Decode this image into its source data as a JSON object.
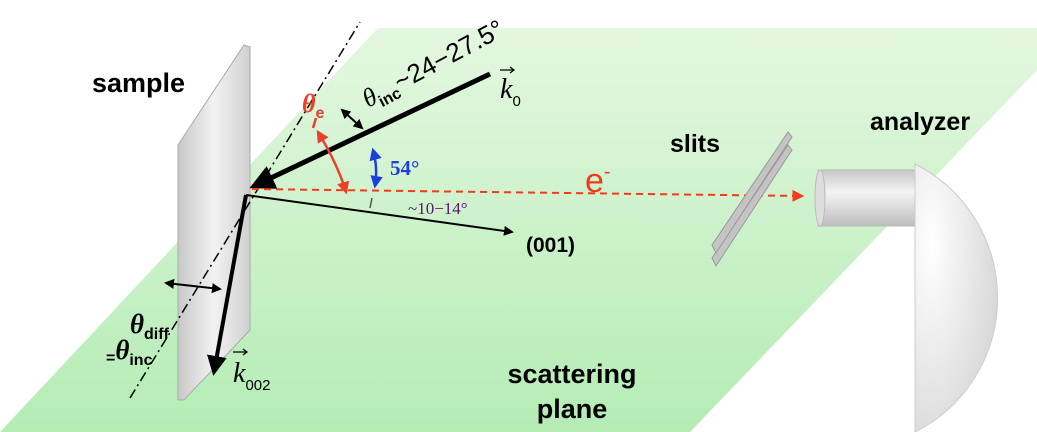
{
  "labels": {
    "sample": "sample",
    "slits": "slits",
    "analyzer": "analyzer",
    "scattering_plane": [
      "scattering",
      "plane"
    ],
    "reflection": "(001)",
    "beam": {
      "text": "e",
      "sup": "-"
    },
    "angle_54": "54°",
    "angle_out": "~10−14°",
    "theta_e": {
      "symbol": "θ",
      "sub": "e"
    },
    "theta_inc": {
      "symbol": "θ",
      "sub": "inc",
      "range": "~24−27.5°"
    },
    "k0": {
      "symbol": "k",
      "sub": "0"
    },
    "k002": {
      "symbol": "k",
      "sub": "002"
    },
    "theta_diff": {
      "symbol": "θ",
      "sub": "diff"
    },
    "equals_theta_inc": {
      "prefix": "=",
      "symbol": "θ",
      "sub": "inc"
    }
  }
}
